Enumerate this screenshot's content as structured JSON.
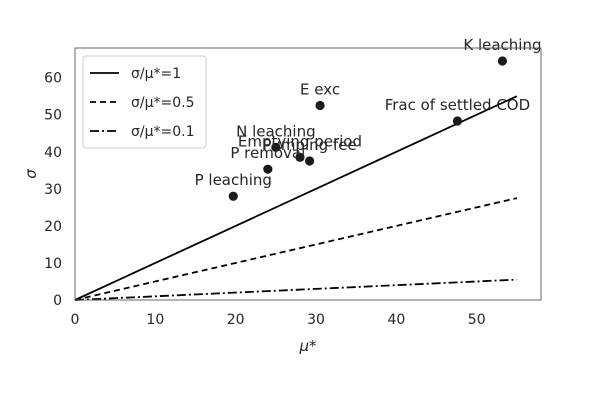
{
  "chart_data": {
    "type": "scatter",
    "xlabel": "μ*",
    "ylabel": "σ",
    "xlim": [
      0,
      58
    ],
    "ylim": [
      0,
      68
    ],
    "xticks": [
      0,
      10,
      20,
      30,
      40,
      50
    ],
    "yticks": [
      0,
      10,
      20,
      30,
      40,
      50,
      60
    ],
    "grid": false,
    "legend_position": "top-left",
    "points": [
      {
        "label": "P leaching",
        "x": 19.7,
        "y": 28.0
      },
      {
        "label": "P removal",
        "x": 24.0,
        "y": 35.3
      },
      {
        "label": "N leaching",
        "x": 25.0,
        "y": 41.2
      },
      {
        "label": "Emptying period",
        "x": 28.0,
        "y": 38.5
      },
      {
        "label": "Pumping fee",
        "x": 29.2,
        "y": 37.5
      },
      {
        "label": "E exc",
        "x": 30.5,
        "y": 52.5
      },
      {
        "label": "Frac of settled COD",
        "x": 47.6,
        "y": 48.3
      },
      {
        "label": "K leaching",
        "x": 53.2,
        "y": 64.5
      }
    ],
    "ref_lines": [
      {
        "name": "σ/μ*=1",
        "ratio": 1,
        "x_end": 55,
        "dash": "solid"
      },
      {
        "name": "σ/μ*=0.5",
        "ratio": 0.5,
        "x_end": 55,
        "dash": "dashed"
      },
      {
        "name": "σ/μ*=0.1",
        "ratio": 0.1,
        "x_end": 55,
        "dash": "dashdot"
      }
    ],
    "colors": {
      "points": "#1a1a1a",
      "lines": "#000000",
      "axes": "#555555",
      "text": "#262626"
    }
  }
}
